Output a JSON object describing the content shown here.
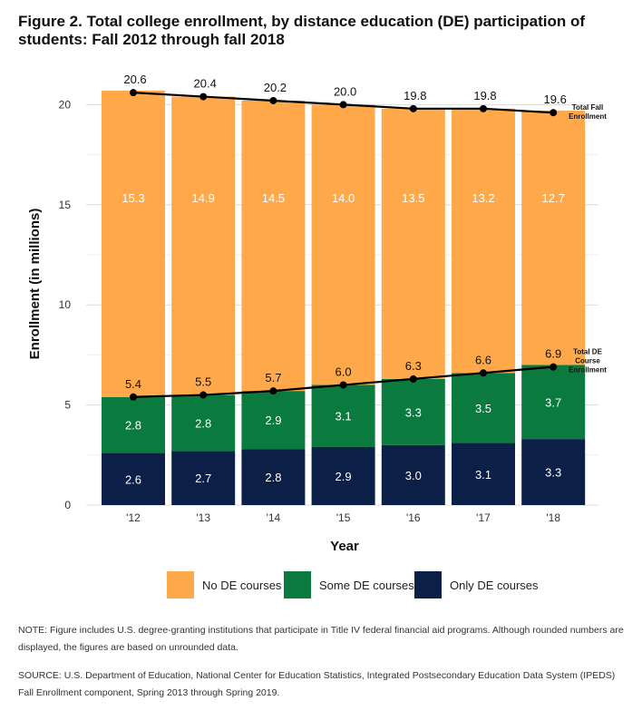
{
  "figure": {
    "title": "Figure 2. Total college enrollment, by distance education (DE) participation of students: Fall 2012 through fall 2018",
    "note": "NOTE: Figure includes U.S. degree-granting institutions that participate in Title IV federal financial aid programs. Although rounded numbers are displayed, the figures are based on unrounded data.",
    "source": "SOURCE: U.S. Department of Education, National Center for Education Statistics, Integrated Postsecondary Education Data System (IPEDS) Fall Enrollment component, Spring 2013 through Spring 2019."
  },
  "chart_data": {
    "type": "bar",
    "stacked": true,
    "categories": [
      "'12",
      "'13",
      "'14",
      "'15",
      "'16",
      "'17",
      "'18"
    ],
    "xlabel": "Year",
    "ylabel": "Enrollment (in millions)",
    "ylim": [
      0,
      21
    ],
    "yticks": [
      0,
      5,
      10,
      15,
      20
    ],
    "grid": true,
    "legend_position": "bottom",
    "series": [
      {
        "name": "Only DE courses",
        "color": "#0c1f46",
        "values": [
          2.6,
          2.7,
          2.8,
          2.9,
          3.0,
          3.1,
          3.3
        ],
        "labels": [
          "2.6",
          "2.7",
          "2.8",
          "2.9",
          "3.0",
          "3.1",
          "3.3"
        ]
      },
      {
        "name": "Some DE courses",
        "color": "#0a7a3e",
        "values": [
          2.8,
          2.8,
          2.9,
          3.1,
          3.3,
          3.5,
          3.7
        ],
        "labels": [
          "2.8",
          "2.8",
          "2.9",
          "3.1",
          "3.3",
          "3.5",
          "3.7"
        ]
      },
      {
        "name": "No DE courses",
        "color": "#ffa94b",
        "values": [
          15.3,
          14.9,
          14.5,
          14.0,
          13.5,
          13.2,
          12.7
        ],
        "labels": [
          "15.3",
          "14.9",
          "14.5",
          "14.0",
          "13.5",
          "13.2",
          "12.7"
        ]
      }
    ],
    "lines": [
      {
        "name": "Total Fall Enrollment",
        "label_lines": [
          "Total Fall",
          "Enrollment"
        ],
        "values": [
          20.6,
          20.4,
          20.2,
          20.0,
          19.8,
          19.8,
          19.6
        ],
        "labels": [
          "20.6",
          "20.4",
          "20.2",
          "20.0",
          "19.8",
          "19.8",
          "19.6"
        ]
      },
      {
        "name": "Total DE Course Enrollment",
        "label_lines": [
          "Total DE",
          "Course",
          "Enrollment"
        ],
        "values": [
          5.4,
          5.5,
          5.7,
          6.0,
          6.3,
          6.6,
          6.9
        ],
        "labels": [
          "5.4",
          "5.5",
          "5.7",
          "6.0",
          "6.3",
          "6.6",
          "6.9"
        ]
      }
    ],
    "legend_order": [
      "No DE courses",
      "Some DE courses",
      "Only DE courses"
    ]
  }
}
